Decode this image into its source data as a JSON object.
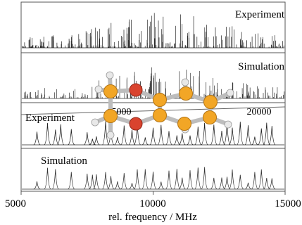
{
  "figure": {
    "panel_labels": {
      "top_experiment": "Experiment",
      "top_simulation": "Simulation",
      "bottom_experiment": "Experiment",
      "bottom_simulation": "Simulation"
    },
    "inner_axis_ticks": [
      "15000",
      "20000"
    ],
    "x_axis_ticks": [
      "5000",
      "10000",
      "15000"
    ],
    "x_axis_label": "rel. frequency / MHz"
  },
  "chart_data": [
    {
      "type": "line",
      "title": "",
      "xlabel": "",
      "ylabel": "",
      "x_range_label": [
        "15000",
        "20000"
      ],
      "series": [
        {
          "name": "Experiment",
          "description_values": "dense rotational spectrum, strongest lines near center"
        },
        {
          "name": "Simulation",
          "description_values": "dense simulated rotational spectrum"
        }
      ]
    },
    {
      "type": "line",
      "title": "",
      "xlabel": "rel. frequency / MHz",
      "ylabel": "",
      "xlim": [
        5000,
        15000
      ],
      "xticks": [
        5000,
        10000,
        15000
      ],
      "series": [
        {
          "name": "Experiment",
          "peaks_mhz": [
            5600,
            6000,
            6300,
            6500,
            6900,
            7500,
            7700,
            7850,
            8200,
            8400,
            8650,
            8900,
            9200,
            9400,
            9700,
            10000,
            10300,
            10600,
            10900,
            11100,
            11400,
            11700,
            11950,
            12300,
            12600,
            12800,
            13000,
            13300,
            13600,
            13850,
            14100,
            14300,
            14500
          ]
        },
        {
          "name": "Simulation",
          "peaks_mhz": [
            5600,
            6000,
            6300,
            6900,
            7500,
            7700,
            7850,
            8200,
            8400,
            8650,
            8900,
            9200,
            9400,
            9700,
            10000,
            10300,
            10600,
            10900,
            11100,
            11400,
            11700,
            11950,
            12300,
            12600,
            12800,
            13000,
            13300,
            13600,
            13850,
            14100,
            14300,
            14500
          ]
        }
      ]
    }
  ]
}
